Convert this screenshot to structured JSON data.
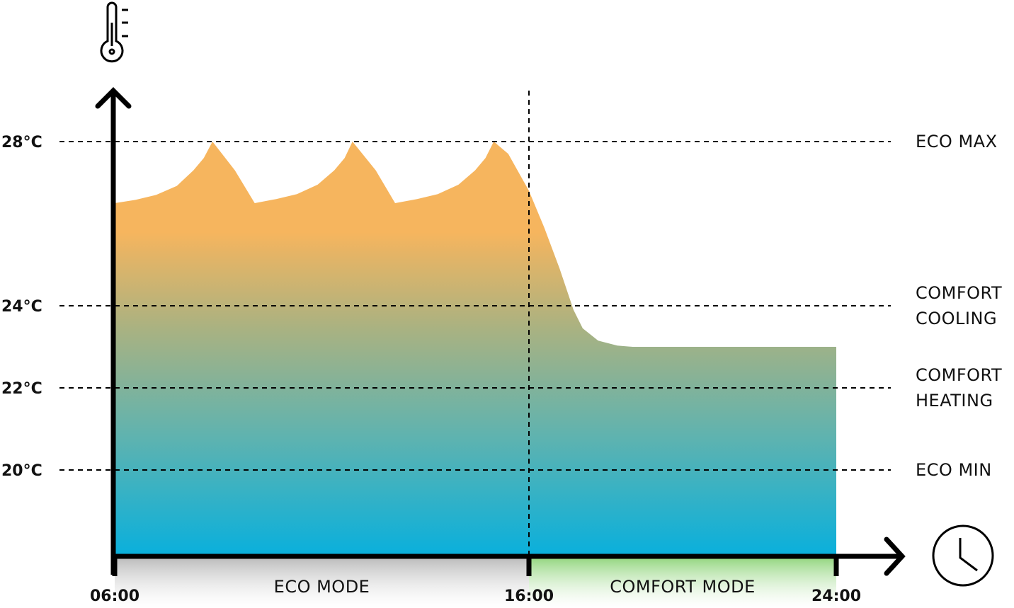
{
  "chart_data": {
    "type": "area",
    "title": "",
    "xlabel": "",
    "ylabel": "",
    "x_unit": "time of day",
    "y_unit": "°C",
    "icons": {
      "y_axis": "thermometer-icon",
      "x_axis": "clock-icon"
    },
    "x_ticks": [
      {
        "value": 6,
        "label": "06:00"
      },
      {
        "value": 16,
        "label": "16:00"
      },
      {
        "value": 24,
        "label": "24:00"
      }
    ],
    "y_ticks": [
      {
        "value": 28,
        "label": "28°C",
        "right_label": [
          "ECO MAX"
        ]
      },
      {
        "value": 24,
        "label": "24°C",
        "right_label": [
          "COMFORT",
          "COOLING"
        ]
      },
      {
        "value": 22,
        "label": "22°C",
        "right_label": [
          "COMFORT",
          "HEATING"
        ]
      },
      {
        "value": 20,
        "label": "20°C",
        "right_label": [
          "ECO MIN"
        ]
      }
    ],
    "mode_divider_hour": 16,
    "modes": [
      {
        "label": "ECO MODE",
        "from": 6,
        "to": 16,
        "color": "#b8b8b8"
      },
      {
        "label": "COMFORT MODE",
        "from": 16,
        "to": 24,
        "color": "#8fd47a"
      }
    ],
    "series": [
      {
        "points": [
          [
            6,
            26.5
          ],
          [
            6.5,
            26.58
          ],
          [
            7,
            26.7
          ],
          [
            7.5,
            26.92
          ],
          [
            7.9,
            27.3
          ],
          [
            8.15,
            27.6
          ],
          [
            8.36,
            28
          ],
          [
            8.9,
            27.3
          ],
          [
            9.38,
            26.5
          ],
          [
            9.9,
            26.6
          ],
          [
            10.4,
            26.72
          ],
          [
            10.9,
            26.95
          ],
          [
            11.3,
            27.3
          ],
          [
            11.55,
            27.6
          ],
          [
            11.74,
            28
          ],
          [
            12.3,
            27.3
          ],
          [
            12.77,
            26.5
          ],
          [
            13.3,
            26.6
          ],
          [
            13.8,
            26.72
          ],
          [
            14.3,
            26.95
          ],
          [
            14.7,
            27.3
          ],
          [
            14.95,
            27.6
          ],
          [
            15.15,
            28
          ],
          [
            15.5,
            27.7
          ],
          [
            16,
            26.8
          ],
          [
            16.4,
            25.9
          ],
          [
            16.8,
            24.9
          ],
          [
            17.16,
            23.9
          ],
          [
            17.4,
            23.45
          ],
          [
            17.8,
            23.15
          ],
          [
            18.3,
            23.03
          ],
          [
            18.7,
            23
          ],
          [
            24,
            23
          ]
        ]
      }
    ],
    "y_range": [
      17.93,
      29.4
    ],
    "x_range": [
      6,
      24
    ],
    "colors": {
      "top": "#f6b55e",
      "mid": "#a7b283",
      "bottom": "#0ab0dc",
      "axis": "#000000"
    }
  }
}
